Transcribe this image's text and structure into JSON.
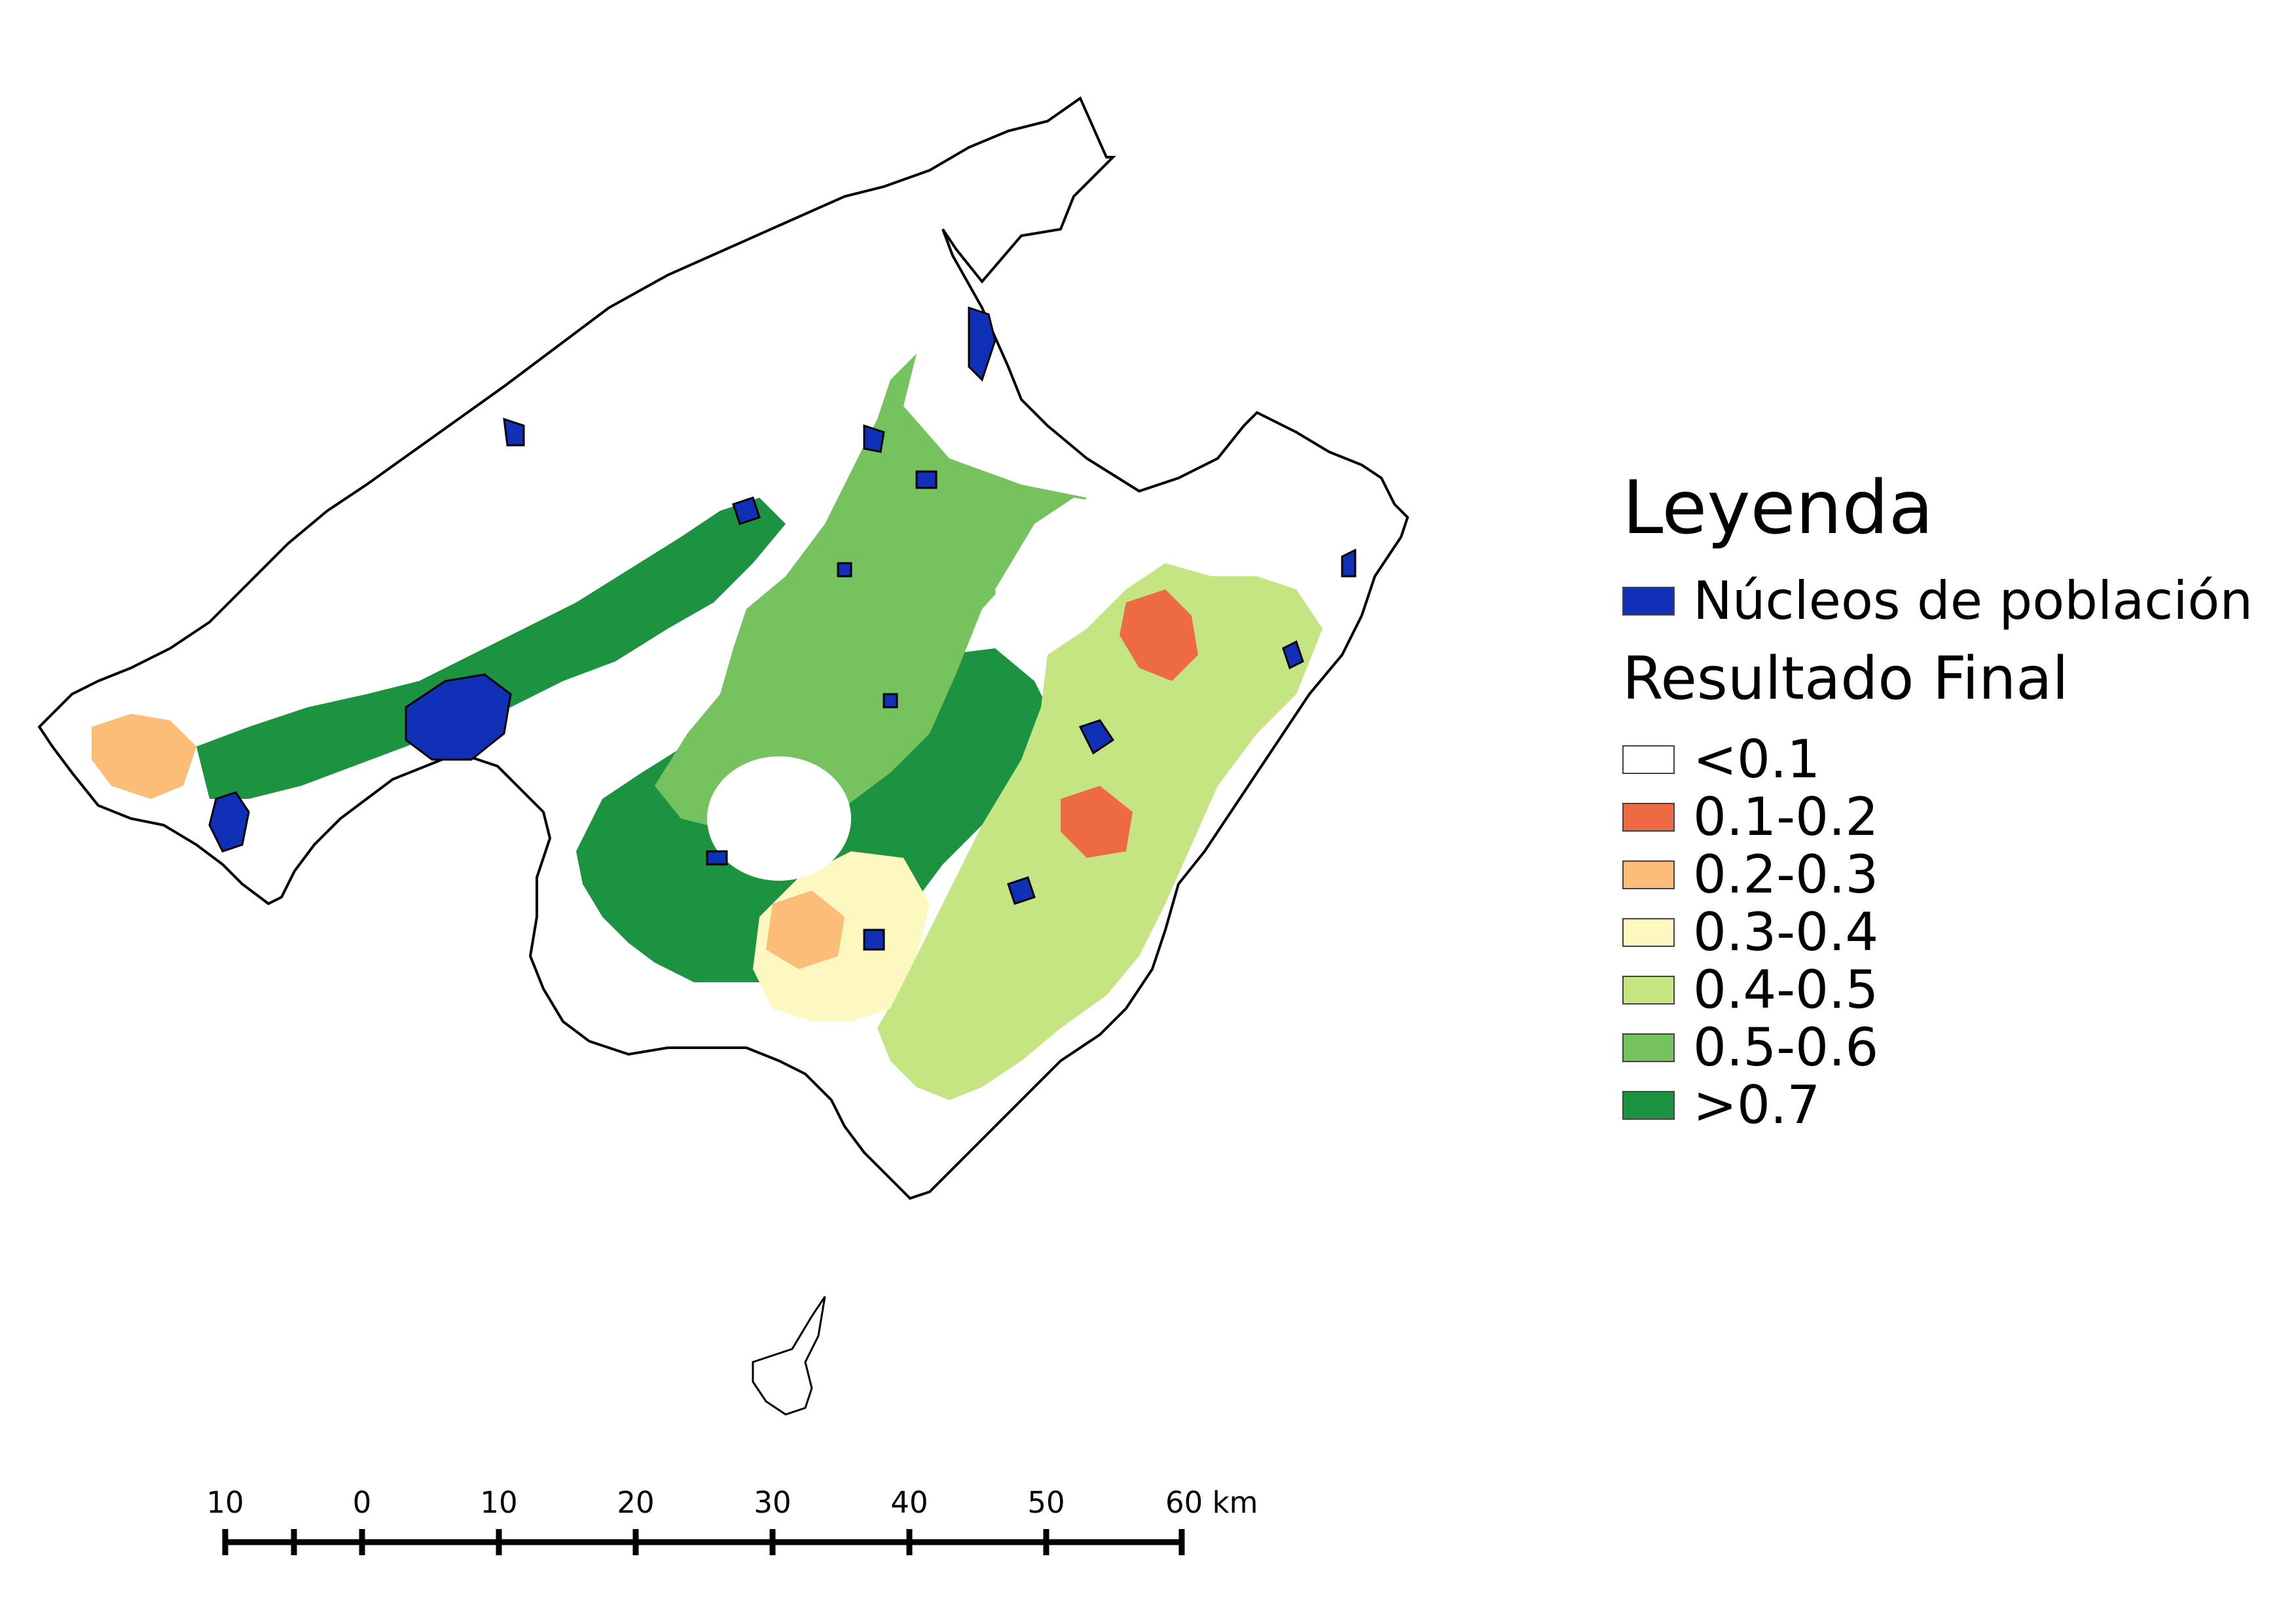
{
  "legend": {
    "title": "Leyenda",
    "towns": {
      "label": "Núcleos de población",
      "color": "#1030b8"
    },
    "result_title": "Resultado Final",
    "classes": [
      {
        "label": "<0.1",
        "color": "#ffffff"
      },
      {
        "label": "0.1-0.2",
        "color": "#ee6a44"
      },
      {
        "label": "0.2-0.3",
        "color": "#fbbd78"
      },
      {
        "label": "0.3-0.4",
        "color": "#fdf7c0"
      },
      {
        "label": "0.4-0.5",
        "color": "#c5e482"
      },
      {
        "label": "0.5-0.6",
        "color": "#76c25e"
      },
      {
        "label": ">0.7",
        "color": "#1b9340"
      }
    ]
  },
  "scale_bar": {
    "tick_labels": [
      "10",
      "0",
      "10",
      "20",
      "30",
      "40",
      "50",
      "60 km"
    ]
  }
}
